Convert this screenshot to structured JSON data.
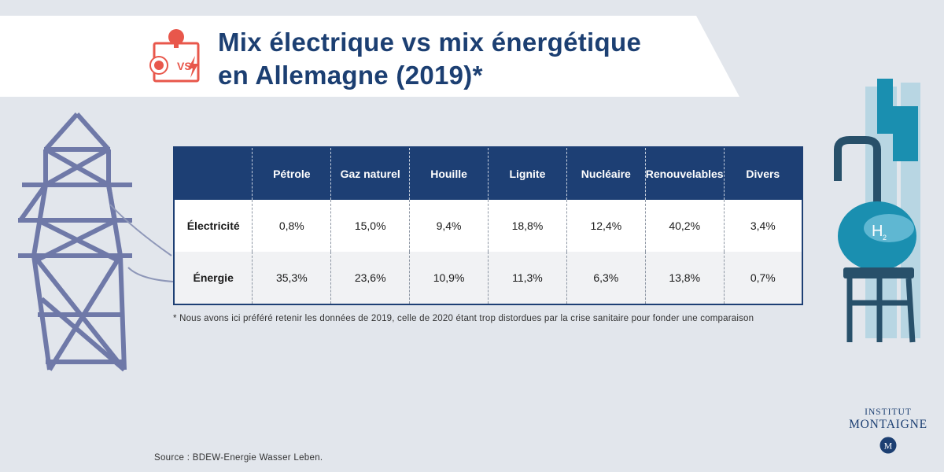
{
  "title_lines": [
    "Mix électrique vs mix énergétique",
    "en Allemagne (2019)*"
  ],
  "title_icon": {
    "name": "electricity-vs-energy-icon",
    "text": "VS"
  },
  "chart_data": {
    "type": "table",
    "columns": [
      "",
      "Pétrole",
      "Gaz naturel",
      "Houille",
      "Lignite",
      "Nucléaire",
      "Renouvelables",
      "Divers"
    ],
    "rows": [
      {
        "label": "Électricité",
        "values": [
          "0,8%",
          "15,0%",
          "9,4%",
          "18,8%",
          "12,4%",
          "40,2%",
          "3,4%"
        ]
      },
      {
        "label": "Énergie",
        "values": [
          "35,3%",
          "23,6%",
          "10,9%",
          "11,3%",
          "6,3%",
          "13,8%",
          "0,7%"
        ]
      }
    ]
  },
  "footnote": "* Nous avons ici préféré retenir les données de 2019, celle de 2020 étant trop distordues par la crise sanitaire pour fonder une comparaison",
  "source": "Source : BDEW-Energie Wasser Leben.",
  "logo": {
    "line1": "INSTITUT",
    "line2": "MONTAIGNE",
    "seal": "M"
  },
  "illustrations": {
    "left": "power-pylon-icon",
    "right": "hydrogen-tank-icon",
    "tank_label": "H",
    "tank_sub": "2"
  },
  "colors": {
    "navy": "#1d3f74",
    "accent_red": "#e8574b",
    "teal": "#1a8fb0",
    "pylon": "#6f79a8",
    "background": "#e2e6ec"
  }
}
